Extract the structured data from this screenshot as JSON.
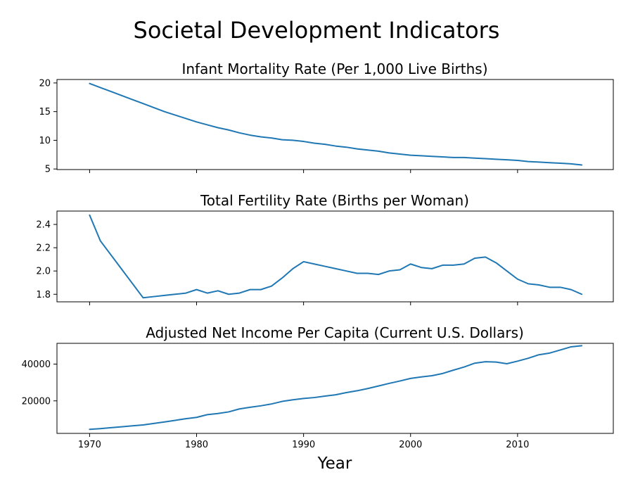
{
  "figure": {
    "title": "Societal Development Indicators",
    "xlabel": "Year"
  },
  "colors": {
    "line": "#1f77b4"
  },
  "chart_data": [
    {
      "type": "line",
      "title": "Infant Mortality Rate (Per 1,000 Live Births)",
      "xlabel": "",
      "ylabel": "",
      "xlim": [
        1966.95,
        2018.95
      ],
      "ylim": [
        4.9,
        20.6
      ],
      "x_ticks": [
        1970,
        1980,
        1990,
        2000,
        2010
      ],
      "x_tick_labels_visible": false,
      "y_ticks": [
        5,
        10,
        15,
        20
      ],
      "y_tick_labels": [
        "5",
        "10",
        "15",
        "20"
      ],
      "grid": false,
      "x": [
        1970,
        1971,
        1972,
        1973,
        1974,
        1975,
        1976,
        1977,
        1978,
        1979,
        1980,
        1981,
        1982,
        1983,
        1984,
        1985,
        1986,
        1987,
        1988,
        1989,
        1990,
        1991,
        1992,
        1993,
        1994,
        1995,
        1996,
        1997,
        1998,
        1999,
        2000,
        2001,
        2002,
        2003,
        2004,
        2005,
        2006,
        2007,
        2008,
        2009,
        2010,
        2011,
        2012,
        2013,
        2014,
        2015,
        2016
      ],
      "series": [
        {
          "values": [
            19.9,
            19.2,
            18.5,
            17.8,
            17.1,
            16.4,
            15.7,
            15.0,
            14.4,
            13.8,
            13.2,
            12.7,
            12.2,
            11.8,
            11.3,
            10.9,
            10.6,
            10.4,
            10.1,
            10.0,
            9.8,
            9.5,
            9.3,
            9.0,
            8.8,
            8.5,
            8.3,
            8.1,
            7.8,
            7.6,
            7.4,
            7.3,
            7.2,
            7.1,
            7.0,
            7.0,
            6.9,
            6.8,
            6.7,
            6.6,
            6.5,
            6.3,
            6.2,
            6.1,
            6.0,
            5.9,
            5.7
          ]
        }
      ]
    },
    {
      "type": "line",
      "title": "Total Fertility Rate (Births per Woman)",
      "xlabel": "",
      "ylabel": "",
      "xlim": [
        1966.95,
        2018.95
      ],
      "ylim": [
        1.735,
        2.515
      ],
      "x_ticks": [
        1970,
        1980,
        1990,
        2000,
        2010
      ],
      "x_tick_labels_visible": false,
      "y_ticks": [
        1.8,
        2.0,
        2.2,
        2.4
      ],
      "y_tick_labels": [
        "1.8",
        "2.0",
        "2.2",
        "2.4"
      ],
      "grid": false,
      "x": [
        1970,
        1971,
        1975,
        1976,
        1977,
        1978,
        1979,
        1980,
        1981,
        1982,
        1983,
        1984,
        1985,
        1986,
        1987,
        1988,
        1989,
        1990,
        1991,
        1992,
        1993,
        1994,
        1995,
        1996,
        1997,
        1998,
        1999,
        2000,
        2001,
        2002,
        2003,
        2004,
        2005,
        2006,
        2007,
        2008,
        2009,
        2010,
        2011,
        2012,
        2013,
        2014,
        2015,
        2016
      ],
      "series": [
        {
          "values": [
            2.48,
            2.26,
            1.77,
            1.78,
            1.79,
            1.8,
            1.81,
            1.84,
            1.81,
            1.83,
            1.8,
            1.81,
            1.84,
            1.84,
            1.87,
            1.94,
            2.02,
            2.08,
            2.06,
            2.04,
            2.02,
            2.0,
            1.98,
            1.98,
            1.97,
            2.0,
            2.01,
            2.06,
            2.03,
            2.02,
            2.05,
            2.05,
            2.06,
            2.11,
            2.12,
            2.07,
            2.0,
            1.93,
            1.89,
            1.88,
            1.86,
            1.86,
            1.84,
            1.8
          ]
        }
      ]
    },
    {
      "type": "line",
      "title": "Adjusted Net Income Per Capita (Current U.S. Dollars)",
      "xlabel": "Year",
      "ylabel": "",
      "xlim": [
        1966.95,
        2018.95
      ],
      "ylim": [
        2300,
        51300
      ],
      "x_ticks": [
        1970,
        1980,
        1990,
        2000,
        2010
      ],
      "x_tick_labels": [
        "1970",
        "1980",
        "1990",
        "2000",
        "2010"
      ],
      "y_ticks": [
        20000,
        40000
      ],
      "y_tick_labels": [
        "20000",
        "40000"
      ],
      "grid": false,
      "x": [
        1970,
        1971,
        1972,
        1973,
        1974,
        1975,
        1976,
        1977,
        1978,
        1979,
        1980,
        1981,
        1982,
        1983,
        1984,
        1985,
        1986,
        1987,
        1988,
        1989,
        1990,
        1991,
        1992,
        1993,
        1994,
        1995,
        1996,
        1997,
        1998,
        1999,
        2000,
        2001,
        2002,
        2003,
        2004,
        2005,
        2006,
        2007,
        2008,
        2009,
        2010,
        2011,
        2012,
        2013,
        2014,
        2015,
        2016
      ],
      "series": [
        {
          "values": [
            4500,
            4900,
            5400,
            5900,
            6400,
            6900,
            7700,
            8500,
            9400,
            10300,
            11000,
            12500,
            13100,
            14000,
            15600,
            16500,
            17300,
            18300,
            19700,
            20600,
            21300,
            21800,
            22600,
            23300,
            24500,
            25500,
            26700,
            28100,
            29500,
            30800,
            32200,
            33000,
            33700,
            34900,
            36700,
            38400,
            40500,
            41300,
            41100,
            40200,
            41600,
            43200,
            45100,
            46000,
            47700,
            49400,
            50000
          ]
        }
      ]
    }
  ]
}
